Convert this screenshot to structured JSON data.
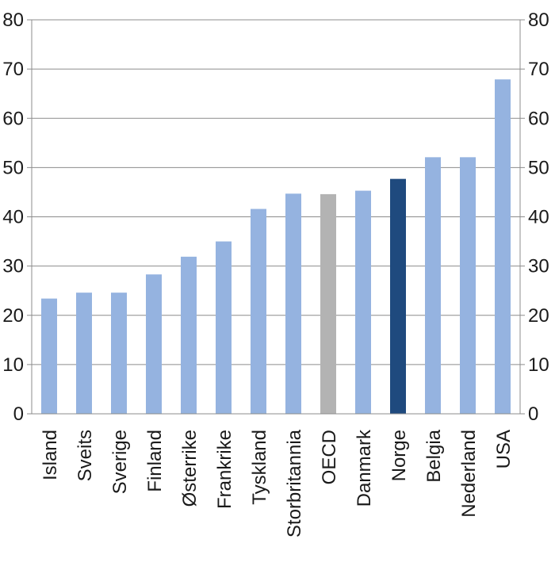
{
  "chart_data": {
    "type": "bar",
    "categories": [
      "Island",
      "Sveits",
      "Sverige",
      "Finland",
      "Østerrike",
      "Frankrike",
      "Tyskland",
      "Storbritannia",
      "OECD",
      "Danmark",
      "Norge",
      "Belgia",
      "Nederland",
      "USA"
    ],
    "values": [
      23.4,
      24.6,
      24.6,
      28.3,
      31.9,
      35.0,
      41.6,
      44.7,
      44.6,
      45.3,
      47.7,
      52.1,
      52.1,
      67.9
    ],
    "bar_colors": [
      "#95b3e0",
      "#95b3e0",
      "#95b3e0",
      "#95b3e0",
      "#95b3e0",
      "#95b3e0",
      "#95b3e0",
      "#95b3e0",
      "#b3b3b3",
      "#95b3e0",
      "#1f4a7e",
      "#95b3e0",
      "#95b3e0",
      "#95b3e0"
    ],
    "ylim": [
      0,
      80
    ],
    "yticks": [
      "0",
      "10",
      "20",
      "30",
      "40",
      "50",
      "60",
      "70",
      "80"
    ],
    "title": "",
    "xlabel": "",
    "ylabel": "",
    "grid": true,
    "dual_y_axis": true
  }
}
